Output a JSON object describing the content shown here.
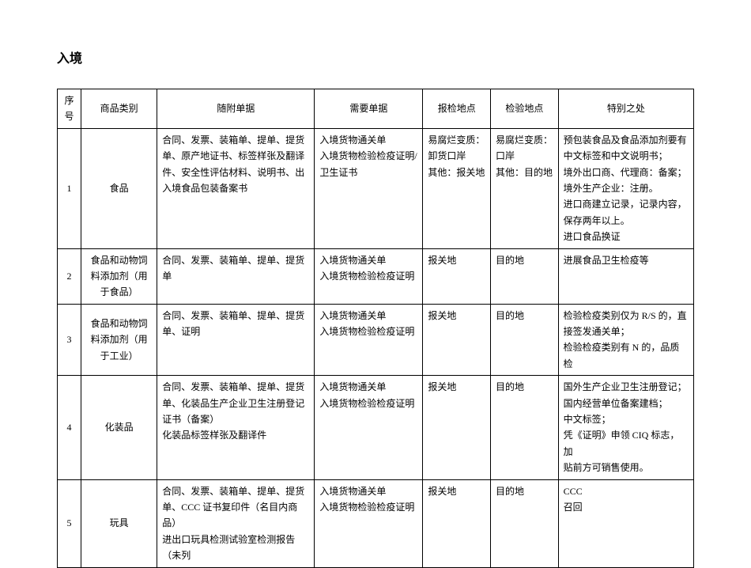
{
  "title": "入境",
  "headers": {
    "seq": "序号",
    "category": "商品类别",
    "attached": "随附单据",
    "needed": "需要单据",
    "inspect_loc": "报检地点",
    "verify_loc": "检验地点",
    "special": "特别之处"
  },
  "rows": [
    {
      "seq": "1",
      "category": "食品",
      "attached": "合同、发票、装箱单、提单、提货单、原产地证书、标签样张及翻译件、安全性评估材料、说明书、出入境食品包装备案书",
      "needed": "入境货物通关单\n入境货物检验检疫证明/卫生证书",
      "inspect_loc": "易腐烂变质：卸货口岸\n其他：报关地",
      "verify_loc": "易腐烂变质：口岸\n其他：目的地",
      "special": "预包装食品及食品添加剂要有中文标签和中文说明书；\n境外出口商、代理商：备案；\n境外生产企业：注册。\n进口商建立记录，记录内容，保存两年以上。\n进口食品换证"
    },
    {
      "seq": "2",
      "category": "食品和动物饲料添加剂（用于食品）",
      "attached": "合同、发票、装箱单、提单、提货单",
      "needed": "入境货物通关单\n入境货物检验检疫证明",
      "inspect_loc": "报关地",
      "verify_loc": "目的地",
      "special": "进展食品卫生检疫等"
    },
    {
      "seq": "3",
      "category": "食品和动物饲料添加剂（用于工业）",
      "attached": "合同、发票、装箱单、提单、提货单、证明",
      "needed": "入境货物通关单\n入境货物检验检疫证明",
      "inspect_loc": "报关地",
      "verify_loc": "目的地",
      "special": "检验检疫类别仅为 R/S 的，直接签发通关单；\n检验检疫类别有 N 的，品质检"
    },
    {
      "seq": "4",
      "category": "化装品",
      "attached": "合同、发票、装箱单、提单、提货单、化装品生产企业卫生注册登记证书（备案）\n化装品标签样张及翻译件",
      "needed": "入境货物通关单\n入境货物检验检疫证明",
      "inspect_loc": "报关地",
      "verify_loc": "目的地",
      "special": "国外生产企业卫生注册登记；\n国内经营单位备案建档；\n中文标签；\n凭《证明》申领 CIQ 标志，加\n贴前方可销售使用。"
    },
    {
      "seq": "5",
      "category": "玩具",
      "attached": "合同、发票、装箱单、提单、提货单、CCC 证书复印件（名目内商品）\n进出口玩具检测试验室检测报告（未列",
      "needed": "入境货物通关单\n入境货物检验检疫证明",
      "inspect_loc": "报关地",
      "verify_loc": "目的地",
      "special": "CCC\n召回"
    }
  ]
}
